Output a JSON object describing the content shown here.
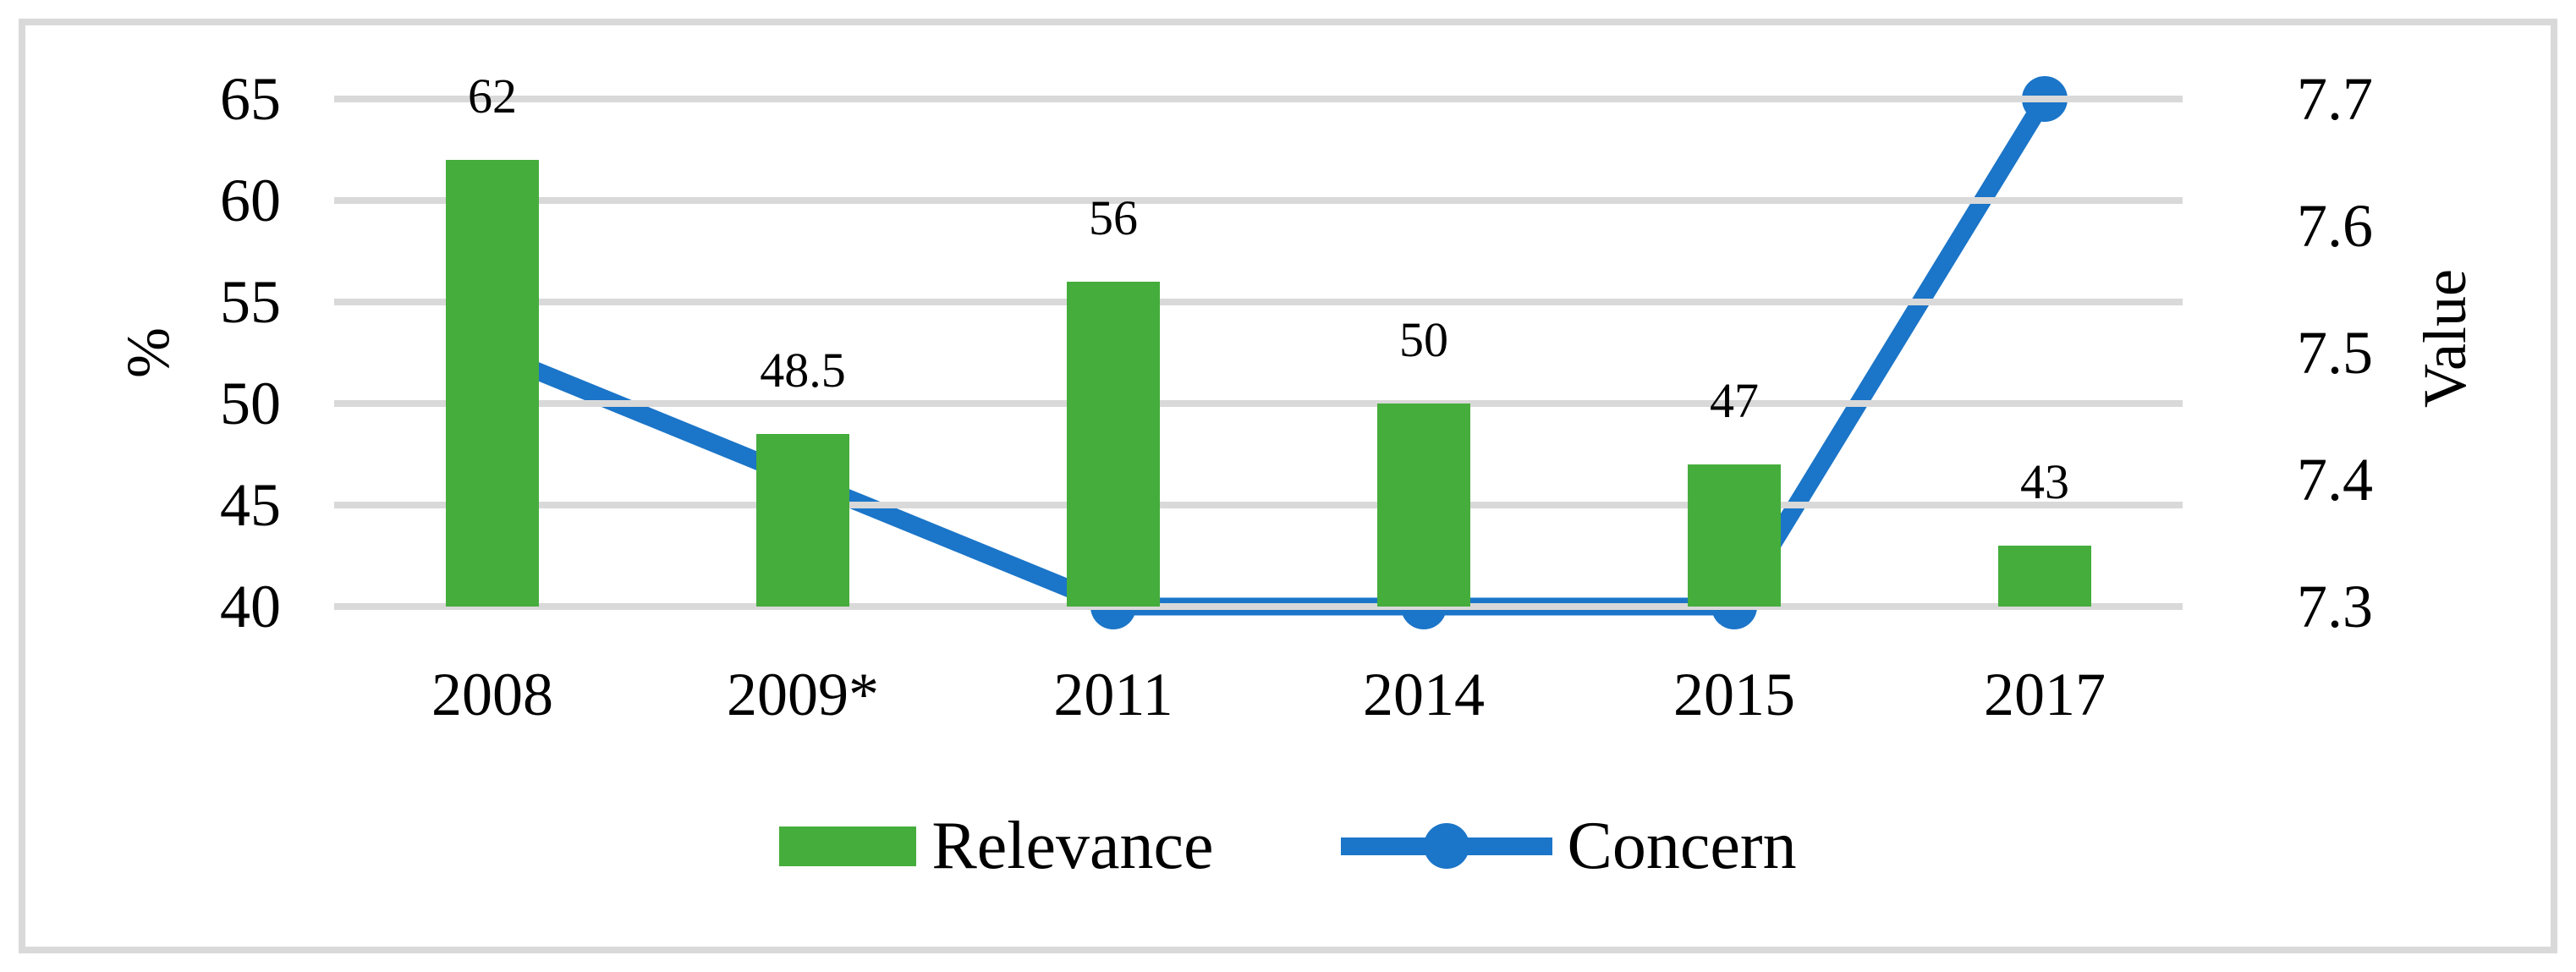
{
  "figure": {
    "background": "#FFFFFF",
    "frame_color": "#D9D9D9",
    "gridline_color": "#D9D9D9"
  },
  "chart_data": {
    "type": "bar+line combo",
    "categories": [
      "2008",
      "2009*",
      "2011",
      "2014",
      "2015",
      "2017"
    ],
    "series": [
      {
        "name": "Relevance",
        "type": "bar",
        "axis": "left",
        "color": "#45AD3C",
        "values": [
          62,
          48.5,
          56,
          50,
          47,
          43
        ],
        "data_labels": [
          "62",
          "48.5",
          "56",
          "50",
          "47",
          "43"
        ]
      },
      {
        "name": "Concern",
        "type": "line",
        "axis": "right",
        "color": "#1B75C8",
        "values": [
          7.5,
          7.4,
          7.3,
          7.3,
          7.3,
          7.7
        ]
      }
    ],
    "left_axis": {
      "title": "%",
      "min": 40,
      "max": 65,
      "step": 5,
      "ticks": [
        "65",
        "60",
        "55",
        "50",
        "45",
        "40"
      ]
    },
    "right_axis": {
      "title": "Value",
      "min": 7.3,
      "max": 7.7,
      "step": 0.1,
      "ticks": [
        "7.7",
        "7.6",
        "7.5",
        "7.4",
        "7.3"
      ]
    },
    "legend": {
      "position": "bottom",
      "entries": [
        "Relevance",
        "Concern"
      ]
    },
    "grid": "horizontal"
  }
}
